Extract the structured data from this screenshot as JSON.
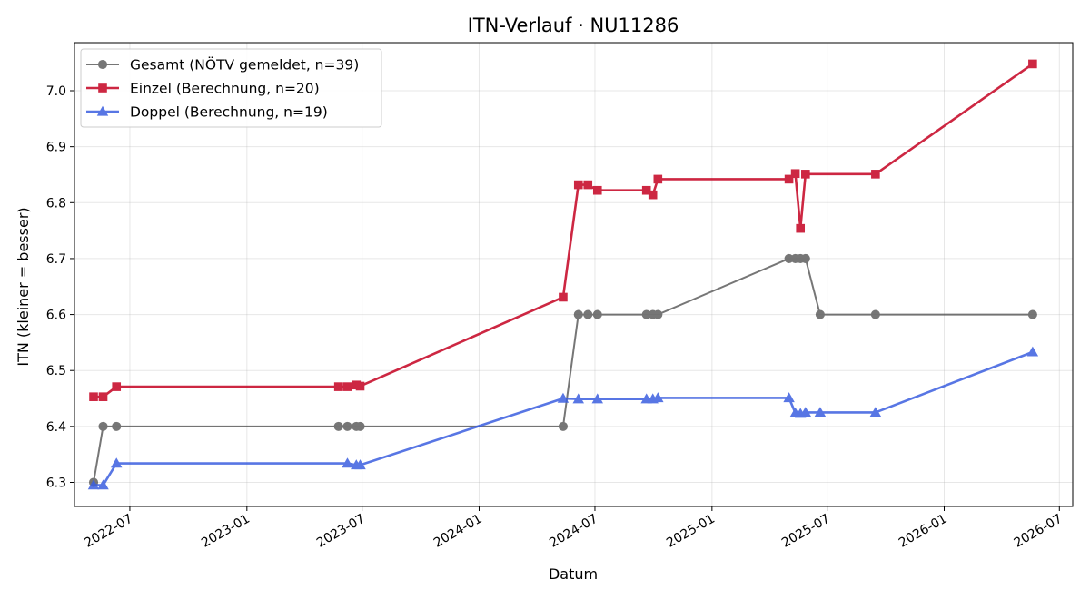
{
  "chart_data": {
    "type": "line",
    "title": "ITN-Verlauf · NU11286",
    "xlabel": "Datum",
    "ylabel": "ITN  (kleiner = besser)",
    "xlim": [
      "2022-04-05",
      "2026-07-22"
    ],
    "ylim": [
      6.257,
      7.086
    ],
    "x_ticks": [
      "2022-07",
      "2023-01",
      "2023-07",
      "2024-01",
      "2024-07",
      "2025-01",
      "2025-07",
      "2026-01",
      "2026-07"
    ],
    "y_ticks": [
      6.3,
      6.4,
      6.5,
      6.6,
      6.7,
      6.8,
      6.9,
      7.0
    ],
    "y_tick_labels": [
      "6.3",
      "6.4",
      "6.5",
      "6.6",
      "6.7",
      "6.8",
      "6.9",
      "7.0"
    ],
    "grid": true,
    "legend_position": "top-left",
    "series": [
      {
        "name": "Gesamt (NÖTV gemeldet, n=39)",
        "color": "#555555",
        "marker": "circle",
        "points": [
          [
            "2022-05-05",
            6.3
          ],
          [
            "2022-05-20",
            6.4
          ],
          [
            "2022-06-10",
            6.4
          ],
          [
            "2023-05-25",
            6.4
          ],
          [
            "2023-06-08",
            6.4
          ],
          [
            "2023-06-22",
            6.4
          ],
          [
            "2023-06-28",
            6.4
          ],
          [
            "2024-05-12",
            6.4
          ],
          [
            "2024-06-05",
            6.6
          ],
          [
            "2024-06-20",
            6.6
          ],
          [
            "2024-07-05",
            6.6
          ],
          [
            "2024-09-20",
            6.6
          ],
          [
            "2024-09-30",
            6.6
          ],
          [
            "2024-10-08",
            6.6
          ],
          [
            "2025-05-02",
            6.7
          ],
          [
            "2025-05-12",
            6.7
          ],
          [
            "2025-05-20",
            6.7
          ],
          [
            "2025-05-28",
            6.7
          ],
          [
            "2025-06-20",
            6.6
          ],
          [
            "2025-09-15",
            6.6
          ],
          [
            "2026-05-20",
            6.6
          ]
        ]
      },
      {
        "name": "Einzel (Berechnung, n=20)",
        "color": "#c8102e",
        "marker": "square",
        "points": [
          [
            "2022-05-05",
            6.453
          ],
          [
            "2022-05-20",
            6.453
          ],
          [
            "2022-06-10",
            6.471
          ],
          [
            "2023-05-25",
            6.471
          ],
          [
            "2023-06-08",
            6.471
          ],
          [
            "2023-06-22",
            6.474
          ],
          [
            "2023-06-28",
            6.472
          ],
          [
            "2024-05-12",
            6.631
          ],
          [
            "2024-06-05",
            6.832
          ],
          [
            "2024-06-20",
            6.832
          ],
          [
            "2024-07-05",
            6.822
          ],
          [
            "2024-09-20",
            6.822
          ],
          [
            "2024-09-30",
            6.814
          ],
          [
            "2024-10-08",
            6.842
          ],
          [
            "2025-05-02",
            6.842
          ],
          [
            "2025-05-12",
            6.852
          ],
          [
            "2025-05-20",
            6.754
          ],
          [
            "2025-05-28",
            6.851
          ],
          [
            "2025-09-15",
            6.851
          ],
          [
            "2026-05-20",
            7.048
          ]
        ]
      },
      {
        "name": "Doppel (Berechnung, n=19)",
        "color": "#3b5fe0",
        "marker": "triangle",
        "points": [
          [
            "2022-05-05",
            6.295
          ],
          [
            "2022-05-20",
            6.295
          ],
          [
            "2022-06-10",
            6.334
          ],
          [
            "2023-06-08",
            6.334
          ],
          [
            "2023-06-22",
            6.331
          ],
          [
            "2023-06-28",
            6.331
          ],
          [
            "2024-05-12",
            6.45
          ],
          [
            "2024-06-05",
            6.449
          ],
          [
            "2024-07-05",
            6.449
          ],
          [
            "2024-09-20",
            6.449
          ],
          [
            "2024-09-30",
            6.449
          ],
          [
            "2024-10-08",
            6.451
          ],
          [
            "2025-05-02",
            6.451
          ],
          [
            "2025-05-12",
            6.424
          ],
          [
            "2025-05-20",
            6.423
          ],
          [
            "2025-05-28",
            6.425
          ],
          [
            "2025-06-20",
            6.425
          ],
          [
            "2025-09-15",
            6.425
          ],
          [
            "2026-05-20",
            6.533
          ]
        ]
      }
    ]
  }
}
